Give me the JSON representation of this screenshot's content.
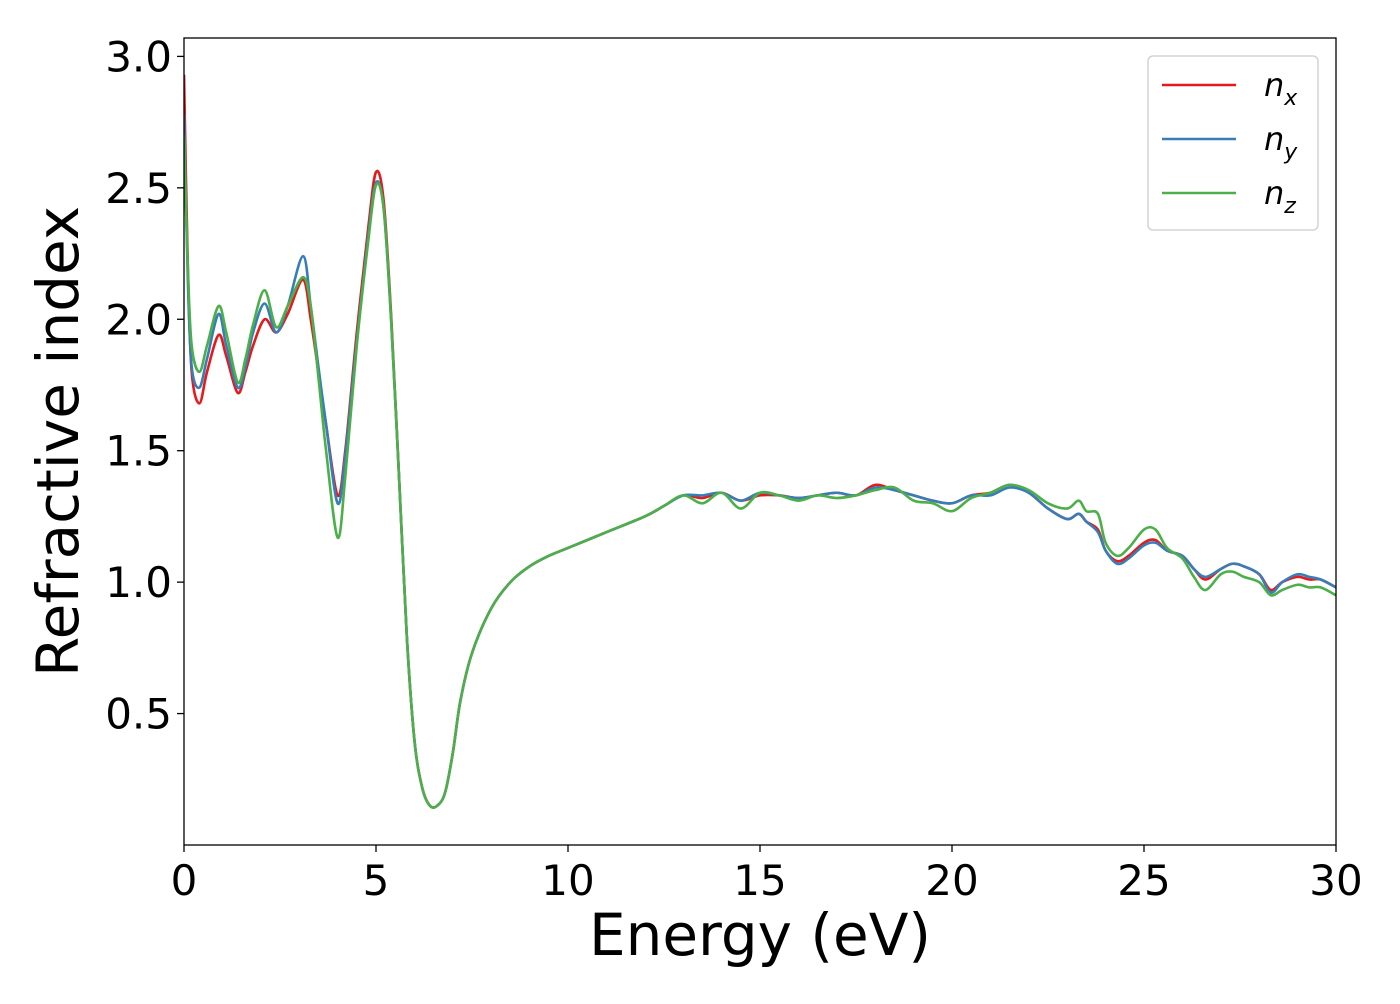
{
  "chart_data": {
    "type": "line",
    "title": "",
    "xlabel": "Energy (eV)",
    "ylabel": "Refractive index",
    "xlim": [
      0,
      30
    ],
    "ylim": [
      0.0,
      3.07
    ],
    "xticks": [
      0,
      5,
      10,
      15,
      20,
      25,
      30
    ],
    "xtick_labels": [
      "0",
      "5",
      "10",
      "15",
      "20",
      "25",
      "30"
    ],
    "yticks": [
      0.5,
      1.0,
      1.5,
      2.0,
      2.5,
      3.0
    ],
    "ytick_labels": [
      "0.5",
      "1.0",
      "1.5",
      "2.0",
      "2.5",
      "3.0"
    ],
    "grid": false,
    "legend_position": "top-right",
    "series": [
      {
        "name": "n",
        "subscript": "x",
        "color": "#e41a1c",
        "x": [
          0,
          0.1,
          0.2,
          0.4,
          0.6,
          0.9,
          1.1,
          1.4,
          1.6,
          1.8,
          2.1,
          2.4,
          2.7,
          3.1,
          3.3,
          3.5,
          3.7,
          4.0,
          4.2,
          4.5,
          4.8,
          5.0,
          5.2,
          5.4,
          5.6,
          5.8,
          6.0,
          6.2,
          6.4,
          6.6,
          6.8,
          7.0,
          7.2,
          7.5,
          8.0,
          8.5,
          9.0,
          9.5,
          10.0,
          11.0,
          12.0,
          12.5,
          13.0,
          13.5,
          14.0,
          14.5,
          15.0,
          15.5,
          16.0,
          16.5,
          17.0,
          17.5,
          18.0,
          18.5,
          19.0,
          19.5,
          20.0,
          20.5,
          21.0,
          21.5,
          22.0,
          22.5,
          23.0,
          23.3,
          23.5,
          23.8,
          24.0,
          24.3,
          24.6,
          25.0,
          25.3,
          25.6,
          26.0,
          26.3,
          26.6,
          27.0,
          27.3,
          27.6,
          28.0,
          28.3,
          28.6,
          29.0,
          29.3,
          29.6,
          30.0
        ],
        "y": [
          2.93,
          2.2,
          1.8,
          1.68,
          1.8,
          1.94,
          1.86,
          1.72,
          1.8,
          1.9,
          2.0,
          1.95,
          2.02,
          2.15,
          2.0,
          1.8,
          1.6,
          1.33,
          1.5,
          1.95,
          2.35,
          2.56,
          2.45,
          2.0,
          1.4,
          0.8,
          0.4,
          0.22,
          0.15,
          0.15,
          0.2,
          0.35,
          0.55,
          0.73,
          0.9,
          1.0,
          1.06,
          1.1,
          1.13,
          1.19,
          1.25,
          1.29,
          1.33,
          1.32,
          1.34,
          1.31,
          1.33,
          1.33,
          1.32,
          1.33,
          1.34,
          1.33,
          1.37,
          1.35,
          1.33,
          1.31,
          1.3,
          1.33,
          1.34,
          1.37,
          1.34,
          1.28,
          1.24,
          1.26,
          1.23,
          1.2,
          1.12,
          1.08,
          1.1,
          1.15,
          1.16,
          1.12,
          1.1,
          1.05,
          1.01,
          1.05,
          1.07,
          1.06,
          1.03,
          0.97,
          1.0,
          1.02,
          1.01,
          1.01,
          0.98
        ]
      },
      {
        "name": "n",
        "subscript": "y",
        "color": "#377eb8",
        "x": [
          0,
          0.1,
          0.2,
          0.4,
          0.6,
          0.9,
          1.1,
          1.4,
          1.6,
          1.8,
          2.1,
          2.4,
          2.7,
          3.1,
          3.3,
          3.5,
          3.7,
          4.0,
          4.2,
          4.5,
          4.8,
          5.0,
          5.2,
          5.4,
          5.6,
          5.8,
          6.0,
          6.2,
          6.4,
          6.6,
          6.8,
          7.0,
          7.2,
          7.5,
          8.0,
          8.5,
          9.0,
          9.5,
          10.0,
          11.0,
          12.0,
          12.5,
          13.0,
          13.5,
          14.0,
          14.5,
          15.0,
          15.5,
          16.0,
          16.5,
          17.0,
          17.5,
          18.0,
          18.5,
          19.0,
          19.5,
          20.0,
          20.5,
          21.0,
          21.5,
          22.0,
          22.5,
          23.0,
          23.3,
          23.5,
          23.8,
          24.0,
          24.3,
          24.6,
          25.0,
          25.3,
          25.6,
          26.0,
          26.3,
          26.6,
          27.0,
          27.3,
          27.6,
          28.0,
          28.3,
          28.6,
          29.0,
          29.3,
          29.6,
          30.0
        ],
        "y": [
          2.78,
          2.15,
          1.82,
          1.74,
          1.85,
          2.02,
          1.9,
          1.74,
          1.82,
          1.95,
          2.06,
          1.95,
          2.05,
          2.24,
          2.05,
          1.82,
          1.6,
          1.3,
          1.48,
          1.92,
          2.32,
          2.52,
          2.42,
          1.98,
          1.4,
          0.8,
          0.4,
          0.22,
          0.15,
          0.15,
          0.2,
          0.35,
          0.55,
          0.73,
          0.9,
          1.0,
          1.06,
          1.1,
          1.13,
          1.19,
          1.25,
          1.29,
          1.33,
          1.33,
          1.34,
          1.31,
          1.34,
          1.33,
          1.32,
          1.33,
          1.34,
          1.33,
          1.36,
          1.35,
          1.33,
          1.31,
          1.3,
          1.33,
          1.33,
          1.36,
          1.34,
          1.28,
          1.24,
          1.26,
          1.23,
          1.19,
          1.12,
          1.07,
          1.09,
          1.14,
          1.15,
          1.12,
          1.1,
          1.05,
          1.02,
          1.05,
          1.07,
          1.06,
          1.03,
          0.96,
          1.0,
          1.03,
          1.02,
          1.01,
          0.98
        ]
      },
      {
        "name": "n",
        "subscript": "z",
        "color": "#4daf4a",
        "x": [
          0,
          0.1,
          0.2,
          0.4,
          0.6,
          0.9,
          1.1,
          1.4,
          1.6,
          1.8,
          2.1,
          2.4,
          2.7,
          3.1,
          3.3,
          3.5,
          3.7,
          4.0,
          4.2,
          4.5,
          4.8,
          5.0,
          5.2,
          5.4,
          5.6,
          5.8,
          6.0,
          6.2,
          6.4,
          6.6,
          6.8,
          7.0,
          7.2,
          7.5,
          8.0,
          8.5,
          9.0,
          9.5,
          10.0,
          11.0,
          12.0,
          12.5,
          13.0,
          13.5,
          14.0,
          14.5,
          15.0,
          15.5,
          16.0,
          16.5,
          17.0,
          17.5,
          18.0,
          18.5,
          19.0,
          19.5,
          20.0,
          20.5,
          21.0,
          21.5,
          22.0,
          22.5,
          23.0,
          23.3,
          23.5,
          23.8,
          24.0,
          24.3,
          24.6,
          25.0,
          25.3,
          25.6,
          26.0,
          26.3,
          26.6,
          27.0,
          27.3,
          27.6,
          28.0,
          28.3,
          28.6,
          29.0,
          29.3,
          29.6,
          30.0
        ],
        "y": [
          2.7,
          2.2,
          1.9,
          1.8,
          1.9,
          2.05,
          1.95,
          1.76,
          1.85,
          1.98,
          2.11,
          1.97,
          2.05,
          2.16,
          2.05,
          1.78,
          1.5,
          1.17,
          1.4,
          1.9,
          2.3,
          2.51,
          2.42,
          1.98,
          1.4,
          0.8,
          0.4,
          0.22,
          0.15,
          0.15,
          0.2,
          0.35,
          0.55,
          0.73,
          0.9,
          1.0,
          1.06,
          1.1,
          1.13,
          1.19,
          1.25,
          1.29,
          1.33,
          1.3,
          1.34,
          1.28,
          1.34,
          1.33,
          1.31,
          1.33,
          1.32,
          1.33,
          1.35,
          1.36,
          1.31,
          1.3,
          1.27,
          1.32,
          1.34,
          1.37,
          1.35,
          1.3,
          1.28,
          1.31,
          1.27,
          1.26,
          1.15,
          1.1,
          1.13,
          1.2,
          1.2,
          1.13,
          1.09,
          1.02,
          0.97,
          1.03,
          1.04,
          1.02,
          1.0,
          0.95,
          0.97,
          0.99,
          0.98,
          0.98,
          0.95
        ]
      }
    ]
  }
}
